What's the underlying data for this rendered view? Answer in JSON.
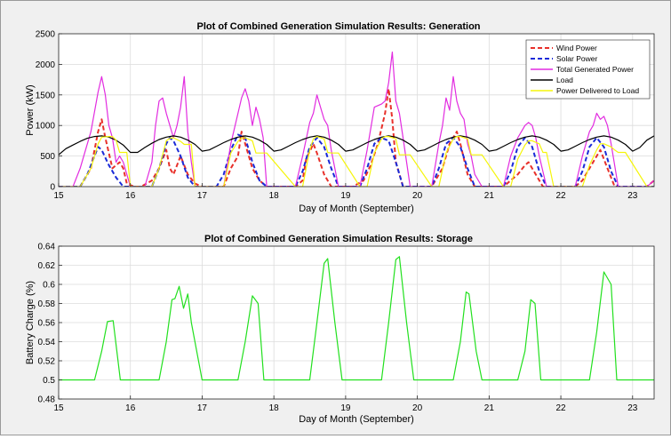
{
  "chart_data": [
    {
      "type": "line",
      "title": "Plot of Combined Generation Simulation Results: Generation",
      "xlabel": "Day of Month (September)",
      "ylabel": "Power (kW)",
      "xlim": [
        15,
        23.3
      ],
      "ylim": [
        0,
        2500
      ],
      "xticks": [
        "15",
        "16",
        "17",
        "18",
        "19",
        "20",
        "21",
        "22",
        "23"
      ],
      "yticks": [
        "0",
        "500",
        "1000",
        "1500",
        "2000",
        "2500"
      ],
      "grid": true,
      "legend_position": "top-right",
      "series": [
        {
          "name": "Wind Power",
          "color": "#e8302a",
          "style": "dashed",
          "x": [
            15,
            15.3,
            15.45,
            15.55,
            15.6,
            15.65,
            15.75,
            15.85,
            15.9,
            15.95,
            16.05,
            16.15,
            16.3,
            16.4,
            16.5,
            16.55,
            16.6,
            16.7,
            16.8,
            16.9,
            17.0,
            17.3,
            17.4,
            17.5,
            17.55,
            17.6,
            17.7,
            17.8,
            17.9,
            18.3,
            18.4,
            18.45,
            18.55,
            18.6,
            18.7,
            18.8,
            19.1,
            19.25,
            19.35,
            19.45,
            19.55,
            19.6,
            19.65,
            19.7,
            19.8,
            20.2,
            20.35,
            20.45,
            20.55,
            20.6,
            20.7,
            20.8,
            21.2,
            21.3,
            21.4,
            21.5,
            21.55,
            21.65,
            21.75,
            22.2,
            22.3,
            22.4,
            22.5,
            22.55,
            22.65,
            22.75,
            23.2,
            23.3
          ],
          "y": [
            0,
            0,
            300,
            900,
            1100,
            800,
            300,
            400,
            300,
            50,
            0,
            0,
            100,
            300,
            600,
            300,
            200,
            500,
            200,
            50,
            0,
            0,
            300,
            500,
            900,
            700,
            300,
            100,
            0,
            0,
            100,
            450,
            700,
            550,
            200,
            0,
            0,
            100,
            350,
            700,
            1200,
            1600,
            1100,
            400,
            0,
            0,
            300,
            700,
            900,
            700,
            200,
            0,
            0,
            100,
            200,
            350,
            400,
            200,
            0,
            0,
            100,
            300,
            500,
            600,
            300,
            0,
            0,
            100
          ]
        },
        {
          "name": "Solar Power",
          "color": "#1a2ad8",
          "style": "dashed",
          "x": [
            15,
            15.3,
            15.4,
            15.5,
            15.55,
            15.6,
            15.7,
            15.8,
            15.9,
            16,
            16.3,
            16.4,
            16.5,
            16.55,
            16.6,
            16.7,
            16.8,
            16.9,
            17.2,
            17.3,
            17.4,
            17.5,
            17.6,
            17.7,
            17.8,
            17.9,
            18.3,
            18.4,
            18.5,
            18.6,
            18.7,
            18.8,
            18.9,
            19.2,
            19.3,
            19.4,
            19.5,
            19.6,
            19.7,
            19.8,
            19.9,
            20.2,
            20.3,
            20.4,
            20.5,
            20.6,
            20.7,
            20.8,
            20.9,
            21.2,
            21.3,
            21.4,
            21.5,
            21.6,
            21.7,
            21.8,
            21.9,
            22.2,
            22.3,
            22.4,
            22.5,
            22.6,
            22.7,
            22.8,
            22.9,
            23.3
          ],
          "y": [
            0,
            0,
            200,
            500,
            650,
            600,
            350,
            150,
            0,
            0,
            0,
            300,
            700,
            800,
            750,
            500,
            150,
            0,
            0,
            200,
            600,
            850,
            800,
            400,
            100,
            0,
            0,
            250,
            650,
            800,
            650,
            300,
            0,
            0,
            300,
            700,
            800,
            750,
            400,
            0,
            0,
            0,
            300,
            700,
            800,
            650,
            300,
            0,
            0,
            0,
            250,
            650,
            800,
            650,
            250,
            0,
            0,
            0,
            250,
            650,
            800,
            650,
            250,
            0,
            0,
            0
          ]
        },
        {
          "name": "Total Generated Power",
          "color": "#e22ce0",
          "style": "solid",
          "x": [
            15,
            15.2,
            15.3,
            15.45,
            15.55,
            15.6,
            15.65,
            15.7,
            15.75,
            15.8,
            15.85,
            15.9,
            15.95,
            16,
            16.2,
            16.3,
            16.35,
            16.4,
            16.45,
            16.5,
            16.55,
            16.6,
            16.65,
            16.7,
            16.75,
            16.8,
            16.85,
            16.9,
            17,
            17.3,
            17.4,
            17.5,
            17.55,
            17.6,
            17.65,
            17.7,
            17.75,
            17.8,
            17.85,
            17.9,
            18.3,
            18.4,
            18.5,
            18.55,
            18.6,
            18.65,
            18.7,
            18.75,
            18.8,
            18.9,
            19.2,
            19.3,
            19.4,
            19.5,
            19.55,
            19.6,
            19.65,
            19.7,
            19.75,
            19.8,
            19.9,
            20.2,
            20.3,
            20.35,
            20.4,
            20.45,
            20.5,
            20.55,
            20.6,
            20.65,
            20.7,
            20.75,
            20.8,
            20.9,
            21.2,
            21.3,
            21.4,
            21.45,
            21.5,
            21.55,
            21.6,
            21.65,
            21.7,
            21.8,
            22.2,
            22.3,
            22.4,
            22.45,
            22.5,
            22.55,
            22.6,
            22.65,
            22.7,
            22.8,
            23.2,
            23.3
          ],
          "y": [
            0,
            0,
            300,
            900,
            1550,
            1800,
            1500,
            1000,
            800,
            400,
            500,
            400,
            200,
            0,
            0,
            400,
            1000,
            1400,
            1450,
            1200,
            1000,
            800,
            1000,
            1300,
            1800,
            900,
            400,
            0,
            0,
            0,
            700,
            1200,
            1450,
            1600,
            1400,
            1000,
            1300,
            1100,
            800,
            0,
            0,
            500,
            1050,
            1200,
            1500,
            1300,
            1100,
            1000,
            600,
            0,
            0,
            600,
            1300,
            1350,
            1400,
            1700,
            2200,
            1400,
            1200,
            800,
            0,
            0,
            700,
            1000,
            1450,
            1250,
            1800,
            1400,
            1200,
            1100,
            700,
            500,
            200,
            0,
            0,
            500,
            800,
            900,
            1000,
            1050,
            1000,
            800,
            500,
            0,
            0,
            500,
            900,
            1000,
            1200,
            1100,
            1150,
            1000,
            700,
            0,
            0,
            100
          ]
        },
        {
          "name": "Load",
          "color": "#000000",
          "style": "solid",
          "x": [
            15,
            15.1,
            15.2,
            15.3,
            15.4,
            15.5,
            15.6,
            15.7,
            15.8,
            15.9,
            16,
            16.1,
            16.2,
            16.3,
            16.4,
            16.5,
            16.6,
            16.7,
            16.8,
            16.9,
            17,
            17.1,
            17.2,
            17.3,
            17.4,
            17.5,
            17.6,
            17.7,
            17.8,
            17.9,
            18,
            18.1,
            18.2,
            18.3,
            18.4,
            18.5,
            18.6,
            18.7,
            18.8,
            18.9,
            19,
            19.1,
            19.2,
            19.3,
            19.4,
            19.5,
            19.6,
            19.7,
            19.8,
            19.9,
            20,
            20.1,
            20.2,
            20.3,
            20.4,
            20.5,
            20.6,
            20.7,
            20.8,
            20.9,
            21,
            21.1,
            21.2,
            21.3,
            21.4,
            21.5,
            21.6,
            21.7,
            21.8,
            21.9,
            22,
            22.1,
            22.2,
            22.3,
            22.4,
            22.5,
            22.6,
            22.7,
            22.8,
            22.9,
            23,
            23.1,
            23.2,
            23.3
          ],
          "y": [
            520,
            620,
            680,
            740,
            790,
            820,
            830,
            810,
            760,
            680,
            560,
            560,
            640,
            710,
            770,
            810,
            830,
            810,
            760,
            690,
            580,
            600,
            660,
            720,
            770,
            810,
            830,
            810,
            760,
            690,
            580,
            600,
            660,
            720,
            770,
            810,
            830,
            810,
            760,
            690,
            580,
            600,
            660,
            720,
            770,
            810,
            830,
            810,
            760,
            690,
            580,
            600,
            660,
            720,
            770,
            810,
            830,
            810,
            760,
            690,
            580,
            600,
            660,
            720,
            770,
            810,
            830,
            810,
            760,
            690,
            580,
            600,
            660,
            720,
            770,
            810,
            830,
            810,
            760,
            690,
            580,
            640,
            760,
            830
          ]
        },
        {
          "name": "Power Delivered to Load",
          "color": "#f5f50a",
          "style": "solid",
          "x": [
            15,
            15.3,
            15.45,
            15.55,
            15.6,
            15.7,
            15.75,
            15.8,
            15.85,
            15.9,
            15.95,
            16,
            16.3,
            16.4,
            16.5,
            16.55,
            16.6,
            16.7,
            16.75,
            16.8,
            16.85,
            16.9,
            17,
            17.3,
            17.4,
            17.5,
            17.55,
            17.6,
            17.7,
            17.75,
            17.8,
            17.9,
            18.3,
            18.4,
            18.5,
            18.55,
            18.6,
            18.7,
            18.75,
            18.8,
            18.9,
            19.2,
            19.3,
            19.4,
            19.5,
            19.55,
            19.6,
            19.7,
            19.75,
            19.8,
            19.9,
            20.2,
            20.3,
            20.4,
            20.5,
            20.55,
            20.6,
            20.7,
            20.75,
            20.8,
            20.9,
            21.2,
            21.3,
            21.4,
            21.5,
            21.55,
            21.6,
            21.7,
            21.75,
            21.8,
            21.9,
            22.2,
            22.3,
            22.4,
            22.5,
            22.55,
            22.6,
            22.7,
            22.75,
            22.8,
            22.9,
            23.2,
            23.3
          ],
          "y": [
            0,
            0,
            300,
            700,
            810,
            820,
            820,
            760,
            560,
            560,
            560,
            0,
            0,
            300,
            750,
            790,
            800,
            740,
            690,
            690,
            690,
            0,
            0,
            0,
            550,
            740,
            790,
            800,
            750,
            550,
            550,
            550,
            0,
            0,
            600,
            780,
            820,
            780,
            560,
            550,
            550,
            0,
            0,
            550,
            780,
            820,
            820,
            780,
            520,
            520,
            520,
            0,
            0,
            550,
            780,
            820,
            820,
            780,
            520,
            520,
            520,
            0,
            0,
            450,
            680,
            750,
            750,
            700,
            560,
            560,
            0,
            0,
            0,
            350,
            600,
            700,
            700,
            650,
            600,
            560,
            560,
            0,
            0
          ]
        }
      ]
    },
    {
      "type": "line",
      "title": "Plot of Combined Generation Simulation Results: Storage",
      "xlabel": "Day of Month (September)",
      "ylabel": "Battery Charge (%)",
      "xlim": [
        15,
        23.3
      ],
      "ylim": [
        0.48,
        0.64
      ],
      "xticks": [
        "15",
        "16",
        "17",
        "18",
        "19",
        "20",
        "21",
        "22",
        "23"
      ],
      "yticks": [
        "0.48",
        "0.5",
        "0.52",
        "0.54",
        "0.56",
        "0.58",
        "0.6",
        "0.62",
        "0.64"
      ],
      "grid": true,
      "series": [
        {
          "color": "#22e01e",
          "x": [
            15,
            15.5,
            15.6,
            15.68,
            15.76,
            15.86,
            16.4,
            16.5,
            16.58,
            16.62,
            16.68,
            16.74,
            16.8,
            16.85,
            17.0,
            17.05,
            17.5,
            17.6,
            17.7,
            17.78,
            17.86,
            17.95,
            18.05,
            18.5,
            18.6,
            18.7,
            18.75,
            18.85,
            18.95,
            19.05,
            19.5,
            19.6,
            19.7,
            19.75,
            19.85,
            19.95,
            20.05,
            20.5,
            20.6,
            20.68,
            20.72,
            20.82,
            20.9,
            21.4,
            21.5,
            21.58,
            21.64,
            21.72,
            21.82,
            22.4,
            22.5,
            22.6,
            22.7,
            22.78,
            22.9,
            23.3
          ],
          "y": [
            0.5,
            0.5,
            0.53,
            0.561,
            0.562,
            0.5,
            0.5,
            0.54,
            0.584,
            0.585,
            0.598,
            0.575,
            0.59,
            0.56,
            0.5,
            0.5,
            0.5,
            0.54,
            0.588,
            0.58,
            0.5,
            0.5,
            0.5,
            0.5,
            0.56,
            0.622,
            0.627,
            0.56,
            0.5,
            0.5,
            0.5,
            0.56,
            0.626,
            0.629,
            0.56,
            0.5,
            0.5,
            0.5,
            0.54,
            0.592,
            0.59,
            0.53,
            0.5,
            0.5,
            0.53,
            0.584,
            0.58,
            0.5,
            0.5,
            0.5,
            0.55,
            0.613,
            0.6,
            0.5,
            0.5,
            0.5
          ]
        }
      ]
    }
  ]
}
